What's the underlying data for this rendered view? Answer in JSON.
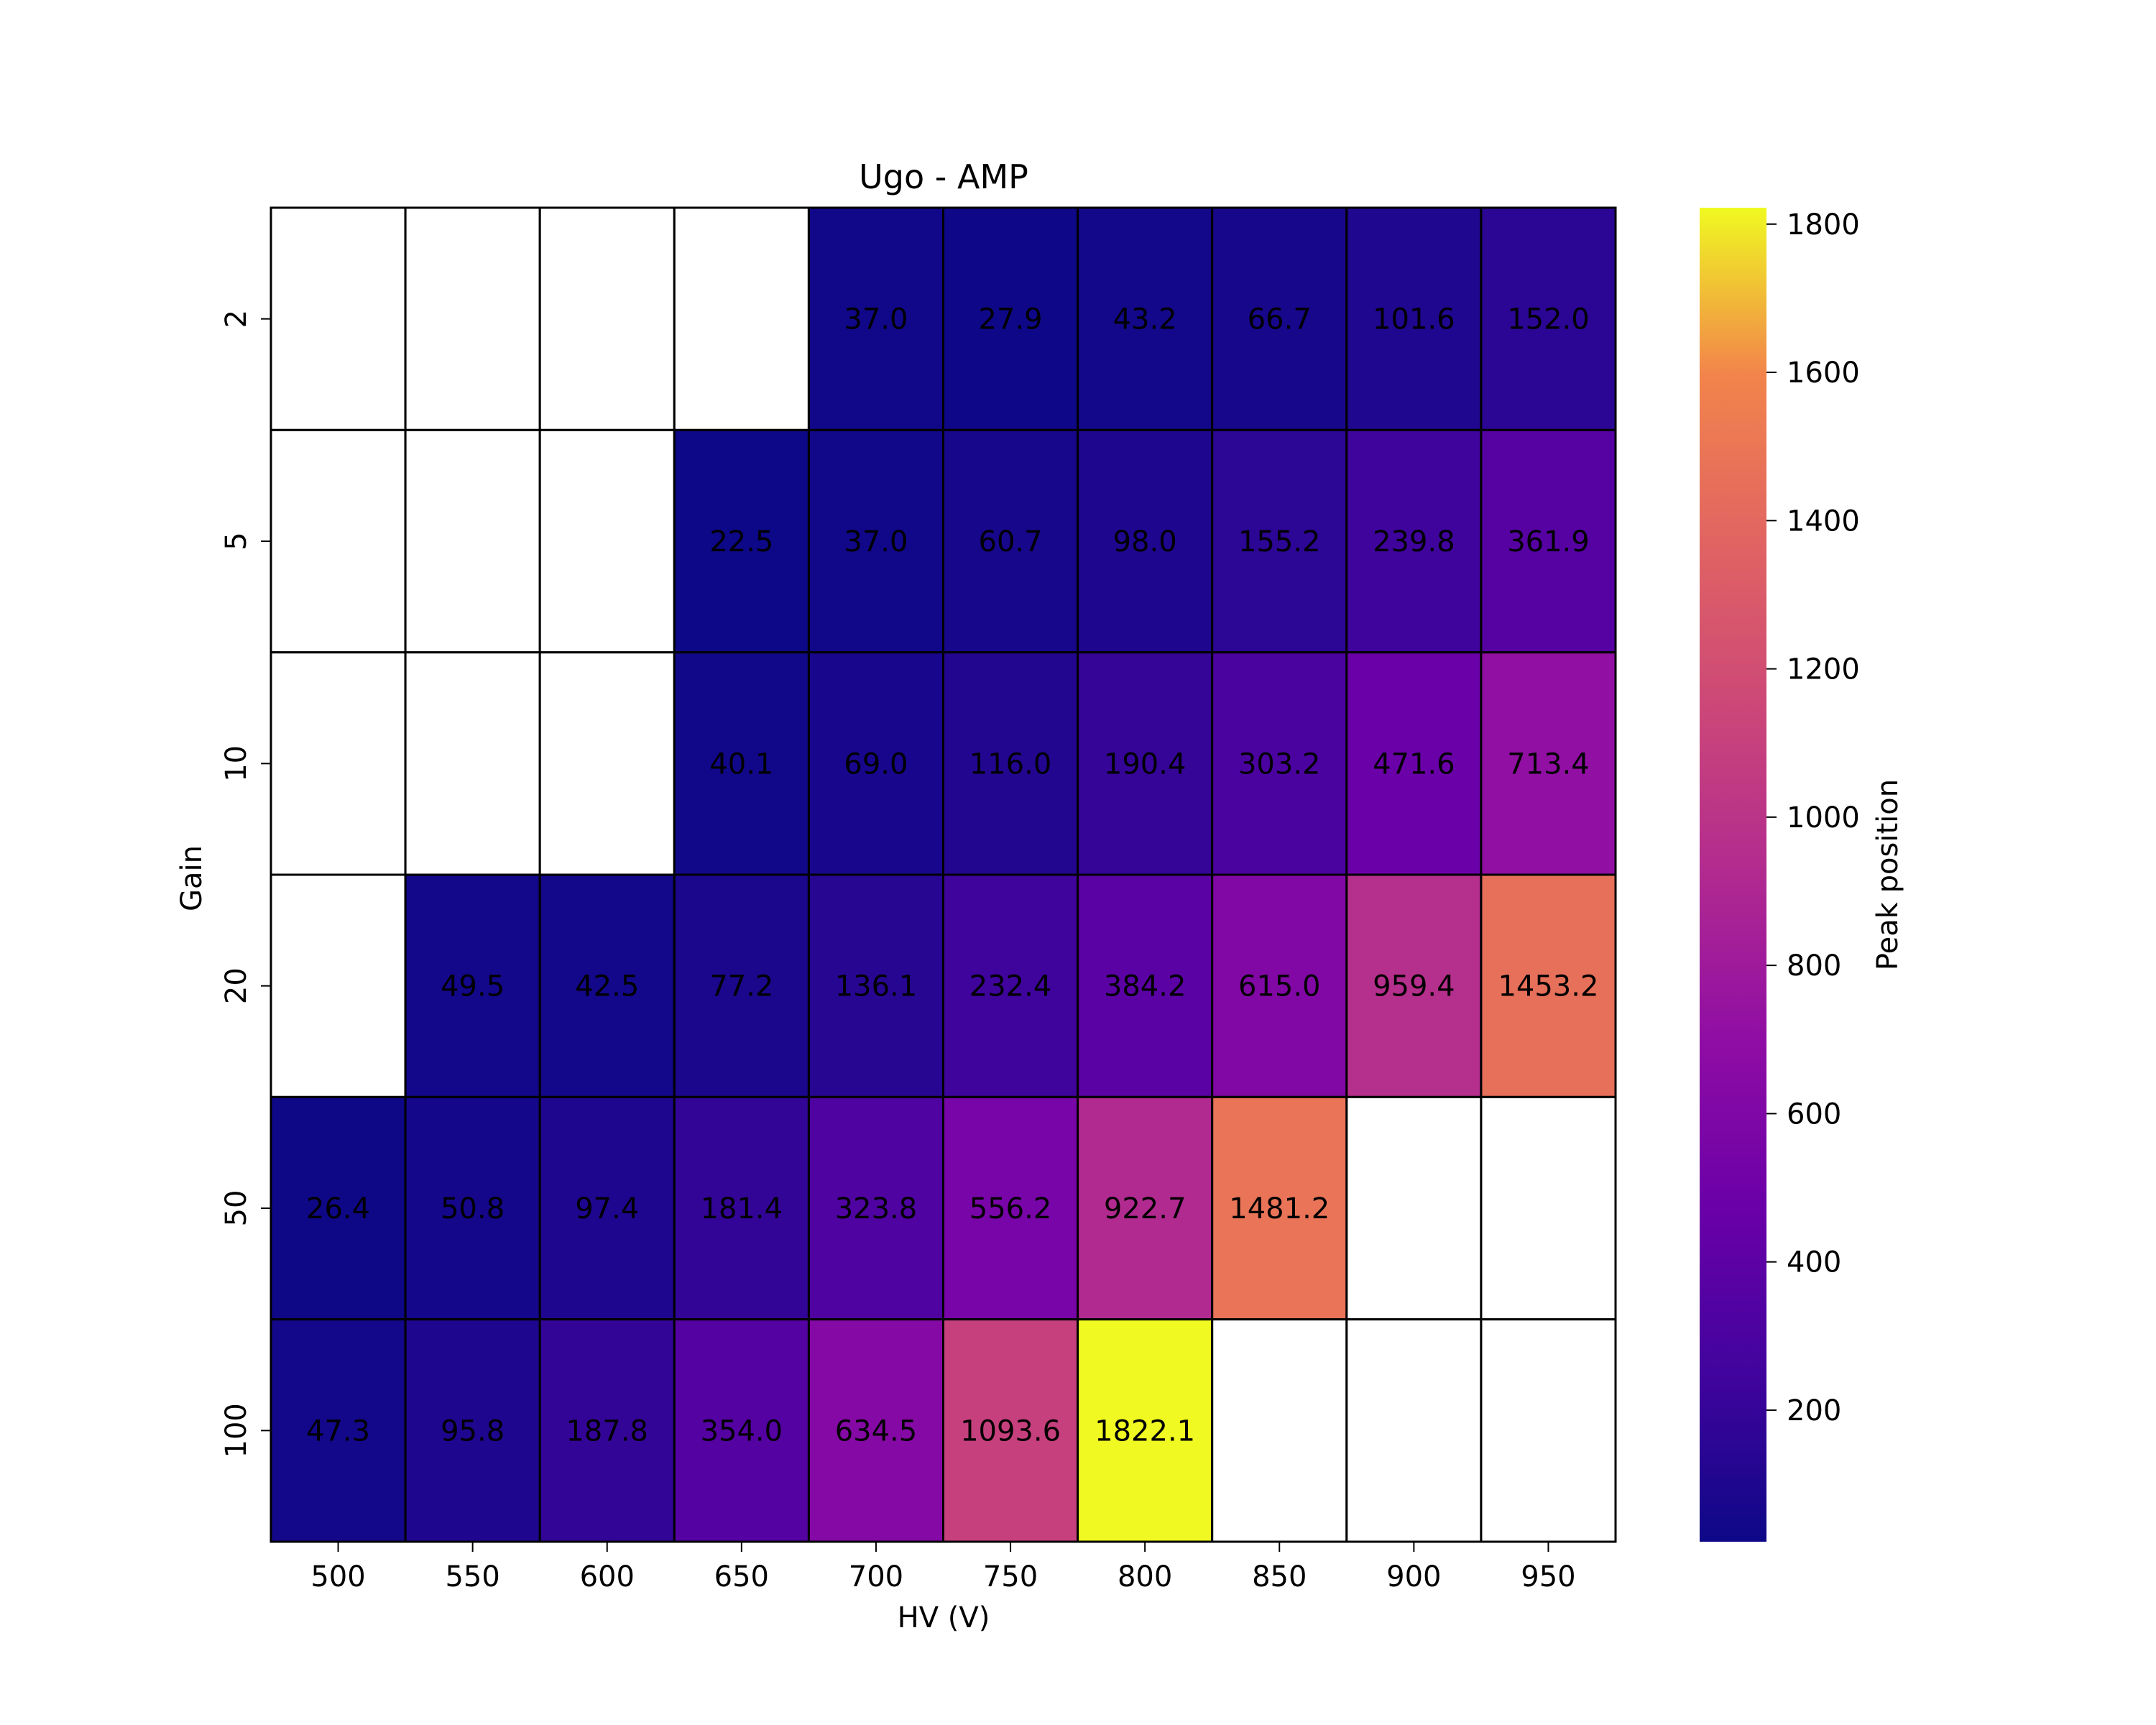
{
  "chart_data": {
    "type": "heatmap",
    "title": "Ugo - AMP",
    "xlabel": "HV (V)",
    "ylabel": "Gain",
    "x": [
      "500",
      "550",
      "600",
      "650",
      "700",
      "750",
      "800",
      "850",
      "900",
      "950"
    ],
    "y": [
      "2",
      "5",
      "10",
      "20",
      "50",
      "100"
    ],
    "values": [
      [
        null,
        null,
        null,
        null,
        37.0,
        27.9,
        43.2,
        66.7,
        101.6,
        152.0
      ],
      [
        null,
        null,
        null,
        22.5,
        37.0,
        60.7,
        98.0,
        155.2,
        239.8,
        361.9
      ],
      [
        null,
        null,
        null,
        40.1,
        69.0,
        116.0,
        190.4,
        303.2,
        471.6,
        713.4
      ],
      [
        null,
        49.5,
        42.5,
        77.2,
        136.1,
        232.4,
        384.2,
        615.0,
        959.4,
        1453.2
      ],
      [
        26.4,
        50.8,
        97.4,
        181.4,
        323.8,
        556.2,
        922.7,
        1481.2,
        null,
        null
      ],
      [
        47.3,
        95.8,
        187.8,
        354.0,
        634.5,
        1093.6,
        1822.1,
        null,
        null,
        null
      ]
    ],
    "colormap": "plasma",
    "vmin": 22.5,
    "vmax": 1822.1,
    "colorbar": {
      "label": "Peak position",
      "ticks": [
        200,
        400,
        600,
        800,
        1000,
        1200,
        1400,
        1600,
        1800
      ]
    },
    "missing_color": "#ffffff",
    "cell_edge_color": "#000000"
  }
}
